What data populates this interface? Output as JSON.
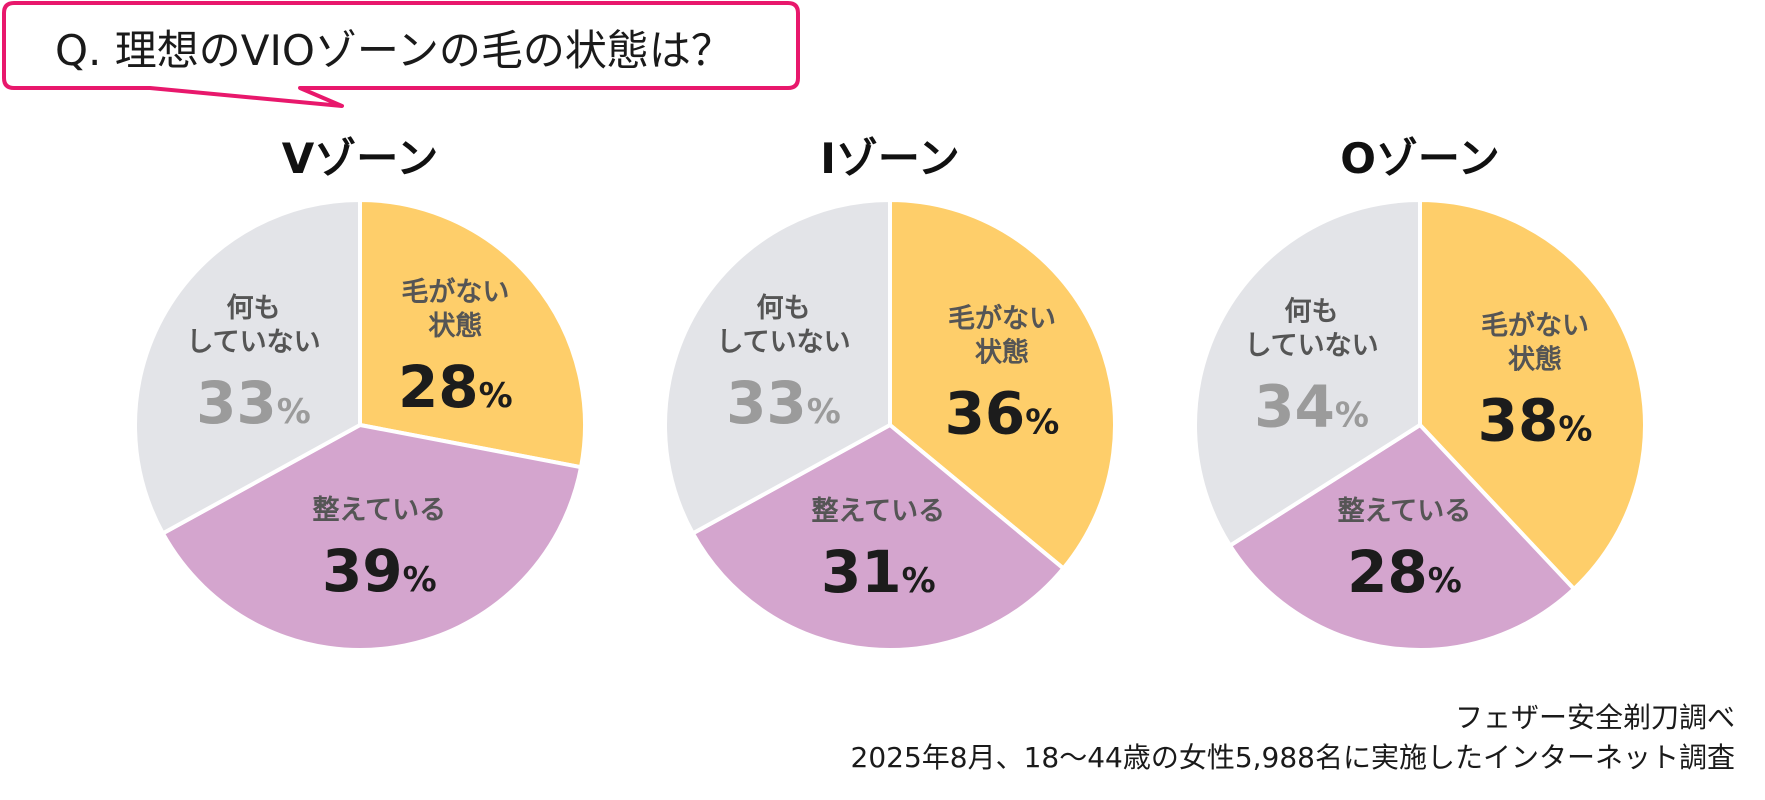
{
  "question": "Q. 理想のVIOゾーンの毛の状態は？",
  "colors": {
    "hairless": "#FECE6A",
    "groomed": "#D4A5CE",
    "nothing": "#E3E4E8",
    "accent": "#E8186C",
    "value_dark": "#1c1c1c",
    "value_gray": "#9b9b9b",
    "label": "#555555"
  },
  "chart_data": [
    {
      "type": "pie",
      "title": "Vゾーン",
      "categories": [
        "毛がない\n状態",
        "整えている",
        "何も\nしていない"
      ],
      "values": [
        28,
        39,
        33
      ],
      "unit": "%"
    },
    {
      "type": "pie",
      "title": "Iゾーン",
      "categories": [
        "毛がない\n状態",
        "整えている",
        "何も\nしていない"
      ],
      "values": [
        36,
        31,
        33
      ],
      "unit": "%"
    },
    {
      "type": "pie",
      "title": "Oゾーン",
      "categories": [
        "毛がない\n状態",
        "整えている",
        "何も\nしていない"
      ],
      "values": [
        38,
        28,
        34
      ],
      "unit": "%"
    }
  ],
  "source": {
    "line1": "フェザー安全剃刀調べ",
    "line2": "2025年8月、18～44歳の女性5,988名に実施したインターネット調査"
  }
}
